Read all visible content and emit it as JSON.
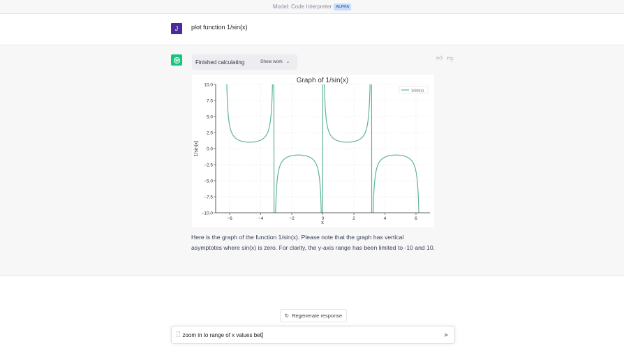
{
  "header": {
    "model_label": "Model: Code Interpreter",
    "badge": "ALPHA"
  },
  "user_message": {
    "avatar": "J",
    "text": "plot function 1/sin(x)"
  },
  "assistant": {
    "status": "Finished calculating",
    "show_work": "Show work",
    "reply": "Here is the graph of the function 1/sin(x). Please note that the graph has vertical asymptotes where sin(x) is zero. For clarity, the y-axis range has been limited to -10 and 10."
  },
  "chart_data": {
    "type": "line",
    "title": "Graph of 1/sin(x)",
    "xlabel": "x",
    "ylabel": "1/sin(x)",
    "series": [
      {
        "name": "1/sin(x)",
        "function": "1/sin(x)",
        "x_range": [
          -6.283,
          6.283
        ],
        "color": "#5fb39b"
      }
    ],
    "xlim": [
      -6.9,
      6.9
    ],
    "ylim": [
      -10,
      10
    ],
    "xticks": [
      -6,
      -4,
      -2,
      0,
      2,
      4,
      6
    ],
    "xtick_labels": [
      "−6",
      "−4",
      "−2",
      "0",
      "2",
      "4",
      "6"
    ],
    "yticks": [
      10,
      7.5,
      5,
      2.5,
      0,
      -2.5,
      -5,
      -7.5,
      -10
    ],
    "ytick_labels": [
      "10.0",
      "7.5",
      "5.0",
      "2.5",
      "0.0",
      "−2.5",
      "−5.0",
      "−7.5",
      "−10.0"
    ],
    "grid": true,
    "legend": "top-right"
  },
  "footer": {
    "regenerate": "Regenerate response",
    "input_value": "zoom in to range of x values bet"
  }
}
